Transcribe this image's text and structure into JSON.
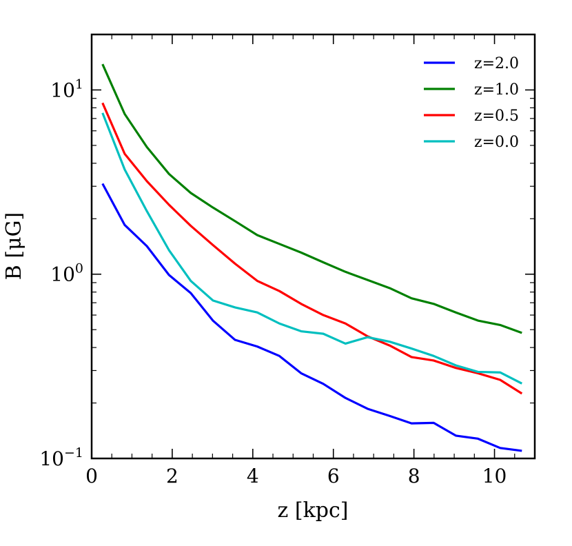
{
  "chart_data": {
    "type": "line",
    "xlabel": "z [kpc]",
    "ylabel": "B [μG]",
    "yscale": "log",
    "xlim": [
      0,
      11
    ],
    "ylim": [
      0.1,
      20
    ],
    "x_ticks": [
      0,
      2,
      4,
      6,
      8,
      10
    ],
    "y_ticks": [
      {
        "value": 0.1,
        "base": "10",
        "exp": "−1"
      },
      {
        "value": 1,
        "base": "10",
        "exp": "0"
      },
      {
        "value": 10,
        "base": "10",
        "exp": "1"
      }
    ],
    "legend_position": "top-right",
    "x": [
      0.27,
      0.82,
      1.37,
      1.92,
      2.46,
      3.01,
      3.56,
      4.11,
      4.66,
      5.2,
      5.75,
      6.3,
      6.85,
      7.4,
      7.94,
      8.49,
      9.04,
      9.59,
      10.14,
      10.68
    ],
    "series": [
      {
        "name": "z=2.0",
        "color": "#0000ff",
        "values": [
          3.1,
          1.85,
          1.42,
          0.99,
          0.79,
          0.56,
          0.44,
          0.405,
          0.36,
          0.29,
          0.254,
          0.213,
          0.186,
          0.17,
          0.155,
          0.156,
          0.133,
          0.128,
          0.114,
          0.11
        ]
      },
      {
        "name": "z=1.0",
        "color": "#008000",
        "values": [
          13.8,
          7.4,
          4.9,
          3.5,
          2.76,
          2.3,
          1.94,
          1.63,
          1.46,
          1.31,
          1.16,
          1.03,
          0.93,
          0.84,
          0.74,
          0.69,
          0.62,
          0.56,
          0.53,
          0.48
        ]
      },
      {
        "name": "z=0.5",
        "color": "#ff0000",
        "values": [
          8.5,
          4.5,
          3.2,
          2.38,
          1.83,
          1.44,
          1.14,
          0.92,
          0.81,
          0.69,
          0.6,
          0.54,
          0.46,
          0.41,
          0.355,
          0.34,
          0.31,
          0.29,
          0.267,
          0.225
        ]
      },
      {
        "name": "z=0.0",
        "color": "#00bfbf",
        "values": [
          7.5,
          3.7,
          2.2,
          1.35,
          0.92,
          0.72,
          0.66,
          0.62,
          0.54,
          0.49,
          0.475,
          0.42,
          0.455,
          0.43,
          0.395,
          0.36,
          0.32,
          0.295,
          0.293,
          0.255
        ]
      }
    ]
  }
}
